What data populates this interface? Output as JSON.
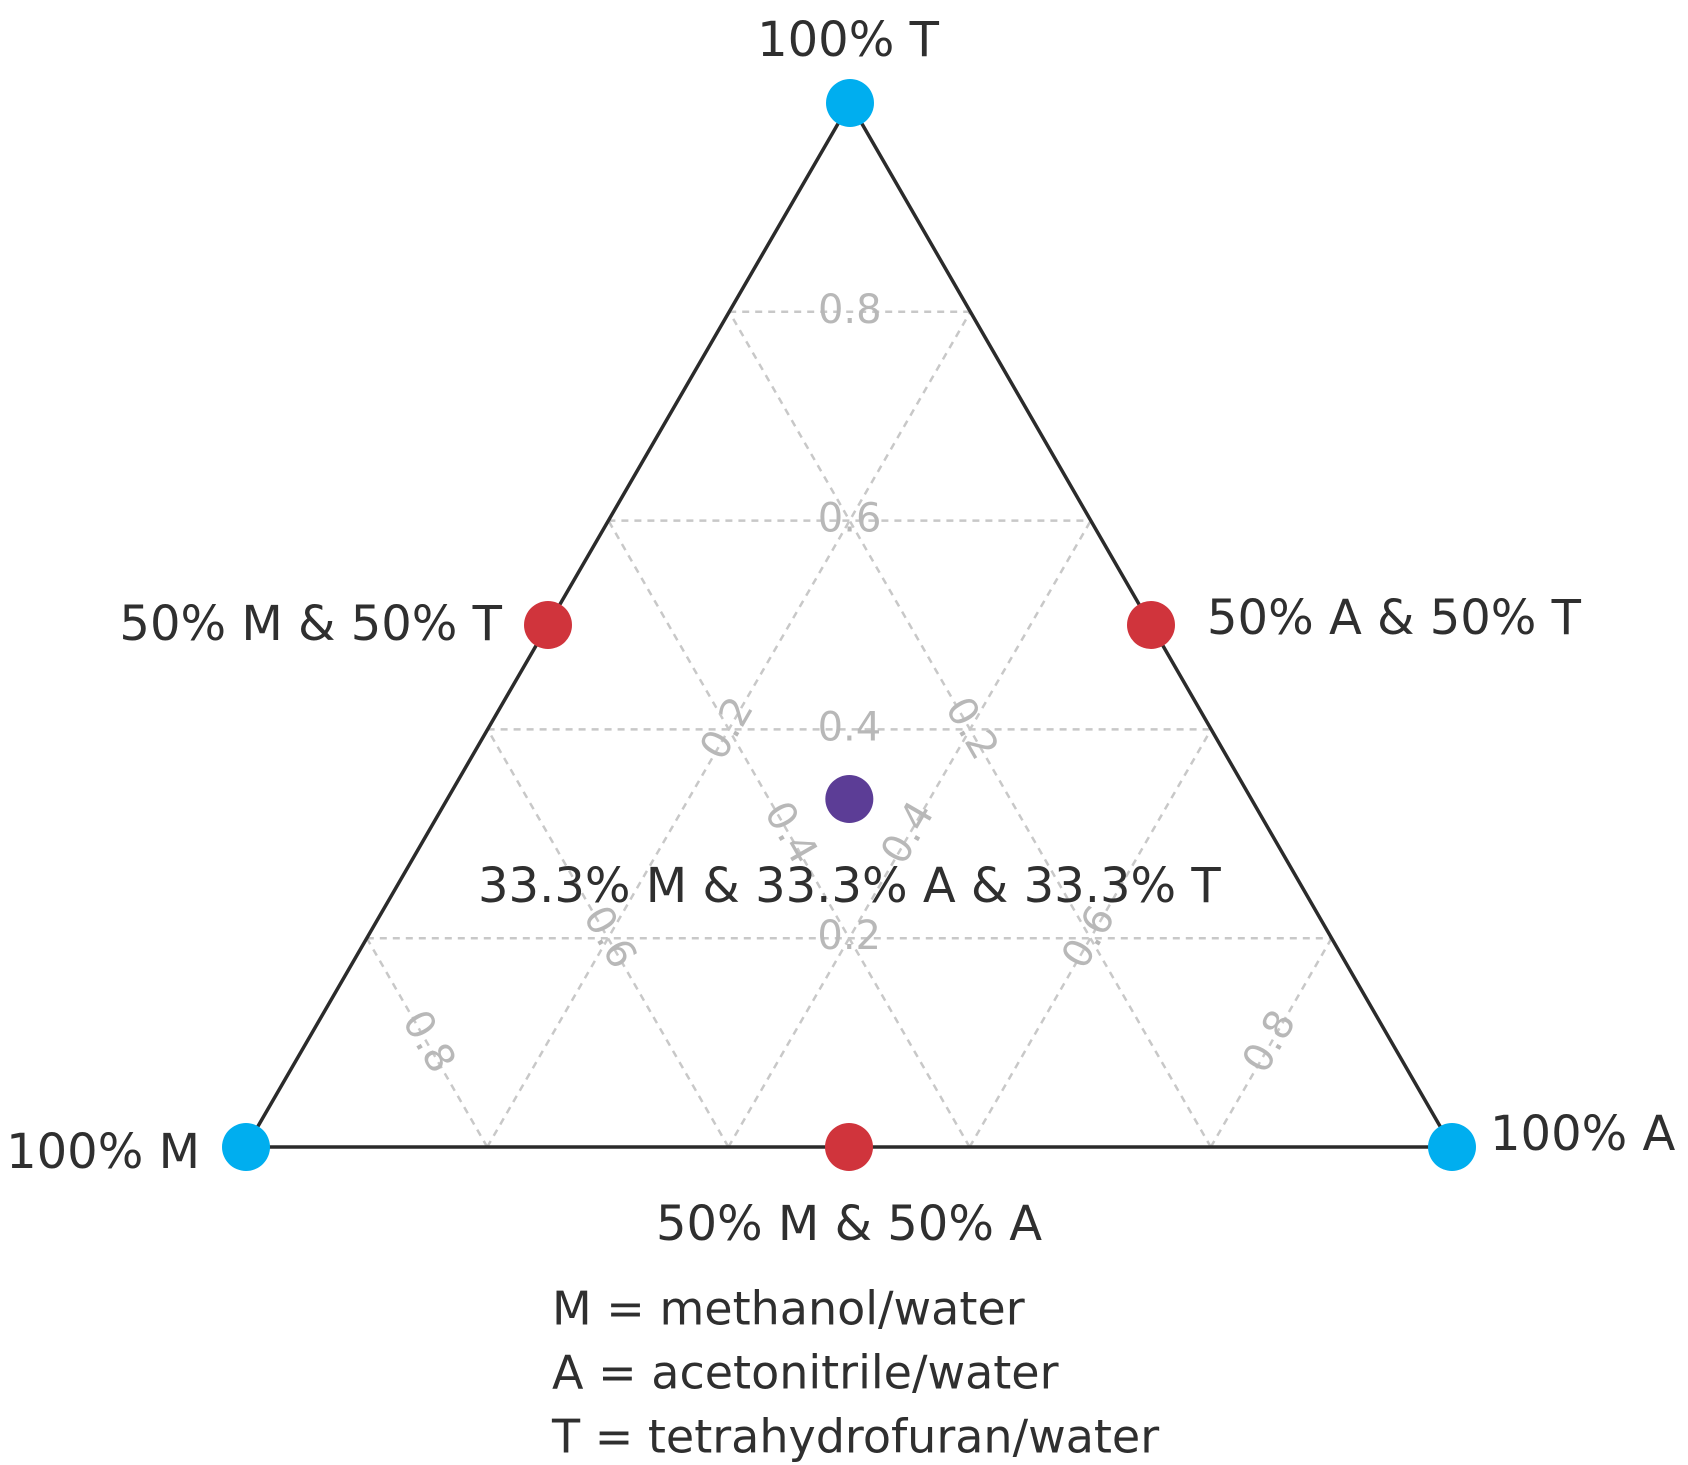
{
  "chart_data": {
    "type": "ternary",
    "grid": true,
    "mticks": [
      0.2,
      0.4,
      0.6,
      0.8
    ],
    "aticks": [
      0.2,
      0.4,
      0.6,
      0.8
    ],
    "tticks": [
      0.2,
      0.4,
      0.6,
      0.8
    ],
    "points": [
      {
        "label": "100% M",
        "color": "#00aeef",
        "values": [
          1,
          0,
          0
        ]
      },
      {
        "label": "100% A",
        "color": "#00aeef",
        "values": [
          0,
          1,
          0
        ]
      },
      {
        "label": "100% T",
        "color": "#00aeef",
        "values": [
          0,
          0,
          1
        ]
      },
      {
        "label": "50% M & 50% T",
        "color": "#d0343c",
        "values": [
          0.5,
          0,
          0.5
        ]
      },
      {
        "label": "50% A & 50% T",
        "color": "#d0343c",
        "values": [
          0,
          0.5,
          0.5
        ]
      },
      {
        "label": "50% M & 50% A",
        "color": "#d0343c",
        "values": [
          0.5,
          0.5,
          0
        ]
      },
      {
        "label": "33.3% M & 33.3% A & 33.3% T",
        "color": "#5c3d96",
        "values": [
          0.333,
          0.333,
          0.333
        ]
      }
    ],
    "notes": [
      "M = methanol/water",
      "A = acetonitrile/water",
      "T = tetrahydrofuran/water"
    ]
  }
}
